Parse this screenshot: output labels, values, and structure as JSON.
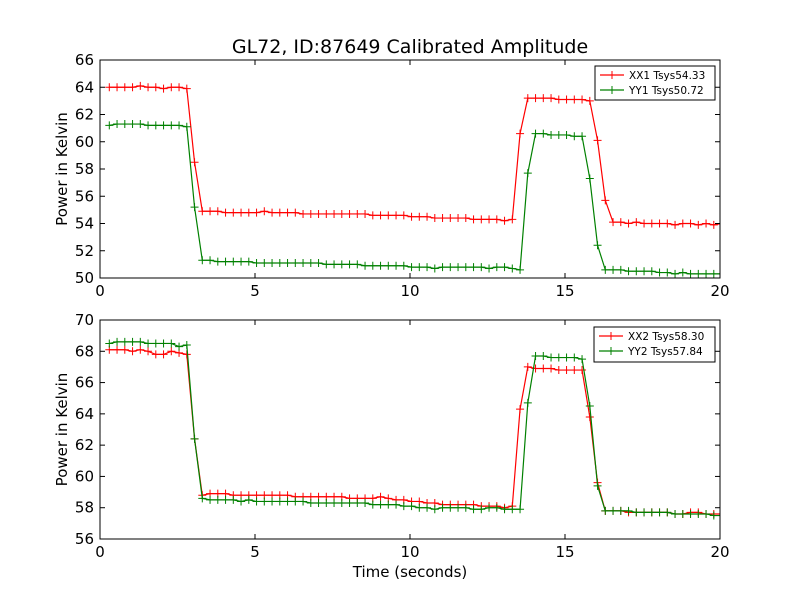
{
  "title": "GL72, ID:87649 Calibrated Amplitude",
  "chart_data": [
    {
      "type": "line",
      "xlabel": "",
      "ylabel": "Power in Kelvin",
      "xlim": [
        0,
        20
      ],
      "ylim": [
        50,
        66
      ],
      "xticks": [
        "0",
        "5",
        "10",
        "15",
        "20"
      ],
      "yticks": [
        "50",
        "52",
        "54",
        "56",
        "58",
        "60",
        "62",
        "64",
        "66"
      ],
      "legend_position": "top-right",
      "grid": false,
      "x": [
        0.3,
        0.55,
        0.8,
        1.05,
        1.3,
        1.55,
        1.8,
        2.05,
        2.3,
        2.55,
        2.8,
        3.05,
        3.3,
        3.55,
        3.8,
        4.05,
        4.3,
        4.55,
        4.8,
        5.05,
        5.3,
        5.55,
        5.8,
        6.05,
        6.3,
        6.55,
        6.8,
        7.05,
        7.3,
        7.55,
        7.8,
        8.05,
        8.3,
        8.55,
        8.8,
        9.05,
        9.3,
        9.55,
        9.8,
        10.05,
        10.3,
        10.55,
        10.8,
        11.05,
        11.3,
        11.55,
        11.8,
        12.05,
        12.3,
        12.55,
        12.8,
        13.05,
        13.3,
        13.55,
        13.8,
        14.05,
        14.3,
        14.55,
        14.8,
        15.05,
        15.3,
        15.55,
        15.8,
        16.05,
        16.3,
        16.55,
        16.8,
        17.05,
        17.3,
        17.55,
        17.8,
        18.05,
        18.3,
        18.55,
        18.8,
        19.05,
        19.3,
        19.55,
        19.8,
        20.05
      ],
      "series": [
        {
          "name": "XX1 Tsys54.33",
          "color": "#ff0000",
          "values": [
            64.0,
            64.0,
            64.0,
            64.0,
            64.1,
            64.0,
            64.0,
            63.9,
            64.0,
            64.0,
            63.9,
            58.5,
            54.9,
            54.9,
            54.9,
            54.8,
            54.8,
            54.8,
            54.8,
            54.8,
            54.9,
            54.8,
            54.8,
            54.8,
            54.8,
            54.7,
            54.7,
            54.7,
            54.7,
            54.7,
            54.7,
            54.7,
            54.7,
            54.7,
            54.6,
            54.6,
            54.6,
            54.6,
            54.6,
            54.5,
            54.5,
            54.5,
            54.4,
            54.4,
            54.4,
            54.4,
            54.4,
            54.3,
            54.3,
            54.3,
            54.3,
            54.2,
            54.3,
            60.6,
            63.2,
            63.2,
            63.2,
            63.2,
            63.1,
            63.1,
            63.1,
            63.1,
            63.0,
            60.1,
            55.7,
            54.1,
            54.1,
            54.0,
            54.1,
            54.0,
            54.0,
            54.0,
            54.0,
            53.9,
            54.0,
            54.0,
            53.9,
            54.0,
            53.9,
            54.0
          ]
        },
        {
          "name": "YY1 Tsys50.72",
          "color": "#008000",
          "values": [
            61.2,
            61.3,
            61.3,
            61.3,
            61.3,
            61.2,
            61.2,
            61.2,
            61.2,
            61.2,
            61.1,
            55.2,
            51.3,
            51.3,
            51.2,
            51.2,
            51.2,
            51.2,
            51.2,
            51.1,
            51.1,
            51.1,
            51.1,
            51.1,
            51.1,
            51.1,
            51.1,
            51.1,
            51.0,
            51.0,
            51.0,
            51.0,
            51.0,
            50.9,
            50.9,
            50.9,
            50.9,
            50.9,
            50.9,
            50.8,
            50.8,
            50.8,
            50.7,
            50.8,
            50.8,
            50.8,
            50.8,
            50.8,
            50.8,
            50.7,
            50.8,
            50.8,
            50.7,
            50.6,
            57.7,
            60.6,
            60.6,
            60.5,
            60.5,
            60.5,
            60.4,
            60.4,
            57.3,
            52.4,
            50.6,
            50.6,
            50.6,
            50.5,
            50.5,
            50.5,
            50.5,
            50.4,
            50.4,
            50.3,
            50.4,
            50.3,
            50.3,
            50.3,
            50.3,
            50.3
          ]
        }
      ]
    },
    {
      "type": "line",
      "xlabel": "Time (seconds)",
      "ylabel": "Power in Kelvin",
      "xlim": [
        0,
        20
      ],
      "ylim": [
        56,
        70
      ],
      "xticks": [
        "0",
        "5",
        "10",
        "15",
        "20"
      ],
      "yticks": [
        "56",
        "58",
        "60",
        "62",
        "64",
        "66",
        "68",
        "70"
      ],
      "legend_position": "top-right",
      "grid": false,
      "x": [
        0.3,
        0.55,
        0.8,
        1.05,
        1.3,
        1.55,
        1.8,
        2.05,
        2.3,
        2.55,
        2.8,
        3.05,
        3.3,
        3.55,
        3.8,
        4.05,
        4.3,
        4.55,
        4.8,
        5.05,
        5.3,
        5.55,
        5.8,
        6.05,
        6.3,
        6.55,
        6.8,
        7.05,
        7.3,
        7.55,
        7.8,
        8.05,
        8.3,
        8.55,
        8.8,
        9.05,
        9.3,
        9.55,
        9.8,
        10.05,
        10.3,
        10.55,
        10.8,
        11.05,
        11.3,
        11.55,
        11.8,
        12.05,
        12.3,
        12.55,
        12.8,
        13.05,
        13.3,
        13.55,
        13.8,
        14.05,
        14.3,
        14.55,
        14.8,
        15.05,
        15.3,
        15.55,
        15.8,
        16.05,
        16.3,
        16.55,
        16.8,
        17.05,
        17.3,
        17.55,
        17.8,
        18.05,
        18.3,
        18.55,
        18.8,
        19.05,
        19.3,
        19.55,
        19.8,
        20.05
      ],
      "series": [
        {
          "name": "XX2 Tsys58.30",
          "color": "#ff0000",
          "values": [
            68.1,
            68.1,
            68.1,
            68.0,
            68.1,
            68.0,
            67.8,
            67.8,
            68.0,
            67.9,
            67.8,
            62.4,
            58.8,
            58.9,
            58.9,
            58.9,
            58.8,
            58.8,
            58.8,
            58.8,
            58.8,
            58.8,
            58.8,
            58.8,
            58.7,
            58.7,
            58.7,
            58.7,
            58.7,
            58.7,
            58.7,
            58.6,
            58.6,
            58.6,
            58.6,
            58.7,
            58.6,
            58.5,
            58.5,
            58.4,
            58.4,
            58.3,
            58.3,
            58.2,
            58.2,
            58.2,
            58.2,
            58.2,
            58.1,
            58.1,
            58.1,
            58.0,
            58.1,
            64.3,
            67.0,
            66.9,
            66.9,
            66.9,
            66.8,
            66.8,
            66.8,
            66.8,
            63.8,
            59.6,
            57.8,
            57.8,
            57.8,
            57.7,
            57.7,
            57.7,
            57.7,
            57.7,
            57.7,
            57.6,
            57.6,
            57.7,
            57.7,
            57.6,
            57.6,
            57.6
          ]
        },
        {
          "name": "YY2 Tsys57.84",
          "color": "#008000",
          "values": [
            68.5,
            68.6,
            68.6,
            68.6,
            68.6,
            68.5,
            68.5,
            68.5,
            68.5,
            68.3,
            68.4,
            62.4,
            58.6,
            58.5,
            58.5,
            58.5,
            58.5,
            58.4,
            58.5,
            58.4,
            58.4,
            58.4,
            58.4,
            58.4,
            58.4,
            58.4,
            58.3,
            58.3,
            58.3,
            58.3,
            58.3,
            58.3,
            58.3,
            58.3,
            58.2,
            58.2,
            58.2,
            58.2,
            58.1,
            58.1,
            58.0,
            58.0,
            57.9,
            58.0,
            58.0,
            58.0,
            58.0,
            57.9,
            57.9,
            58.0,
            58.0,
            57.9,
            57.9,
            57.9,
            64.7,
            67.7,
            67.7,
            67.6,
            67.6,
            67.6,
            67.6,
            67.5,
            64.5,
            59.4,
            57.8,
            57.8,
            57.8,
            57.8,
            57.7,
            57.7,
            57.7,
            57.7,
            57.7,
            57.6,
            57.6,
            57.6,
            57.6,
            57.6,
            57.5,
            57.5
          ]
        }
      ]
    }
  ]
}
